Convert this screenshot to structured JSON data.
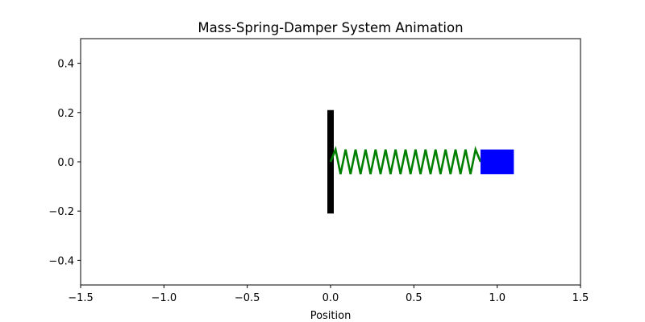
{
  "chart_data": {
    "type": "line",
    "title": "Mass-Spring-Damper System Animation",
    "xlabel": "Position",
    "ylabel": "",
    "xlim": [
      -1.5,
      1.5
    ],
    "ylim": [
      -0.5,
      0.5
    ],
    "xticks": [
      {
        "value": -1.5,
        "label": "−1.5"
      },
      {
        "value": -1.0,
        "label": "−1.0"
      },
      {
        "value": -0.5,
        "label": "−0.5"
      },
      {
        "value": 0.0,
        "label": "0.0"
      },
      {
        "value": 0.5,
        "label": "0.5"
      },
      {
        "value": 1.0,
        "label": "1.0"
      },
      {
        "value": 1.5,
        "label": "1.5"
      }
    ],
    "yticks": [
      {
        "value": -0.4,
        "label": "−0.4"
      },
      {
        "value": -0.2,
        "label": "−0.2"
      },
      {
        "value": 0.0,
        "label": "0.0"
      },
      {
        "value": 0.2,
        "label": "0.2"
      },
      {
        "value": 0.4,
        "label": "0.4"
      }
    ],
    "grid": false,
    "wall": {
      "x": 0.0,
      "y_range": [
        -0.21,
        0.21
      ],
      "color": "#000000"
    },
    "spring": {
      "x_start": 0.0,
      "x_end": 0.9,
      "amplitude": 0.05,
      "coils": 15,
      "color": "#008000"
    },
    "mass": {
      "x_range": [
        0.9,
        1.1
      ],
      "y_range": [
        -0.05,
        0.05
      ],
      "color": "#0000ff"
    }
  }
}
